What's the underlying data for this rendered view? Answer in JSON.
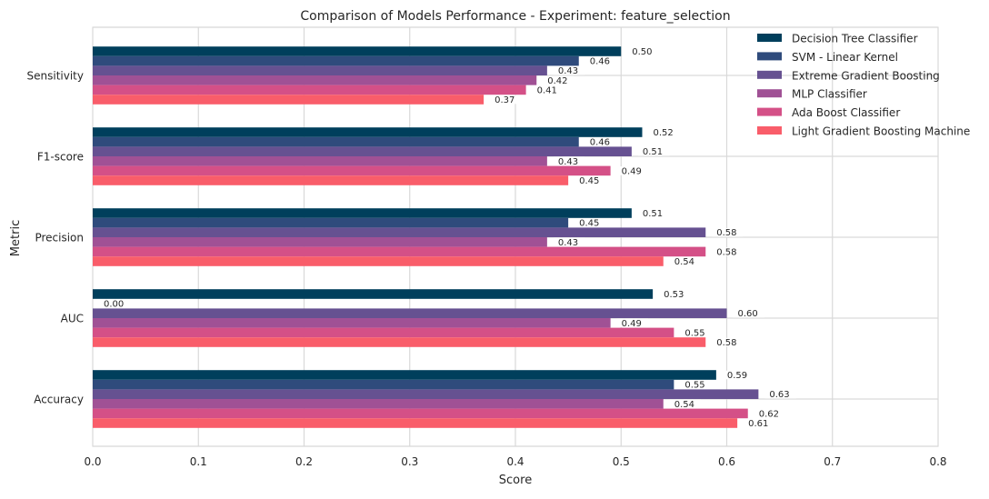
{
  "chart_data": {
    "type": "bar",
    "orientation": "horizontal",
    "title": "Comparison of Models Performance - Experiment: feature_selection",
    "xlabel": "Score",
    "ylabel": "Metric",
    "xlim": [
      0,
      0.8
    ],
    "x_ticks": [
      "0.0",
      "0.1",
      "0.2",
      "0.3",
      "0.4",
      "0.5",
      "0.6",
      "0.7",
      "0.8"
    ],
    "categories": [
      "Sensitivity",
      "F1-score",
      "Precision",
      "AUC",
      "Accuracy"
    ],
    "grid": true,
    "legend_position": "top-right",
    "series": [
      {
        "name": "Decision Tree Classifier",
        "color": "#003f5c",
        "values": [
          0.5,
          0.52,
          0.51,
          0.53,
          0.59
        ],
        "labels": [
          "0.50",
          "0.52",
          "0.51",
          "0.53",
          "0.59"
        ]
      },
      {
        "name": "SVM - Linear Kernel",
        "color": "#2f4b7c",
        "values": [
          0.46,
          0.46,
          0.45,
          0.0,
          0.55
        ],
        "labels": [
          "0.46",
          "0.46",
          "0.45",
          "0.00",
          "0.55"
        ]
      },
      {
        "name": "Extreme Gradient Boosting",
        "color": "#665191",
        "values": [
          0.43,
          0.51,
          0.58,
          0.6,
          0.63
        ],
        "labels": [
          "0.43",
          "0.51",
          "0.58",
          "0.60",
          "0.63"
        ]
      },
      {
        "name": "MLP Classifier",
        "color": "#a05195",
        "values": [
          0.42,
          0.43,
          0.43,
          0.49,
          0.54
        ],
        "labels": [
          "0.42",
          "0.43",
          "0.43",
          "0.49",
          "0.54"
        ]
      },
      {
        "name": "Ada Boost Classifier",
        "color": "#d45087",
        "values": [
          0.41,
          0.49,
          0.58,
          0.55,
          0.62
        ],
        "labels": [
          "0.41",
          "0.49",
          "0.58",
          "0.55",
          "0.62"
        ]
      },
      {
        "name": "Light Gradient Boosting Machine",
        "color": "#f95d6a",
        "values": [
          0.37,
          0.45,
          0.54,
          0.58,
          0.61
        ],
        "labels": [
          "0.37",
          "0.45",
          "0.54",
          "0.58",
          "0.61"
        ]
      }
    ]
  }
}
